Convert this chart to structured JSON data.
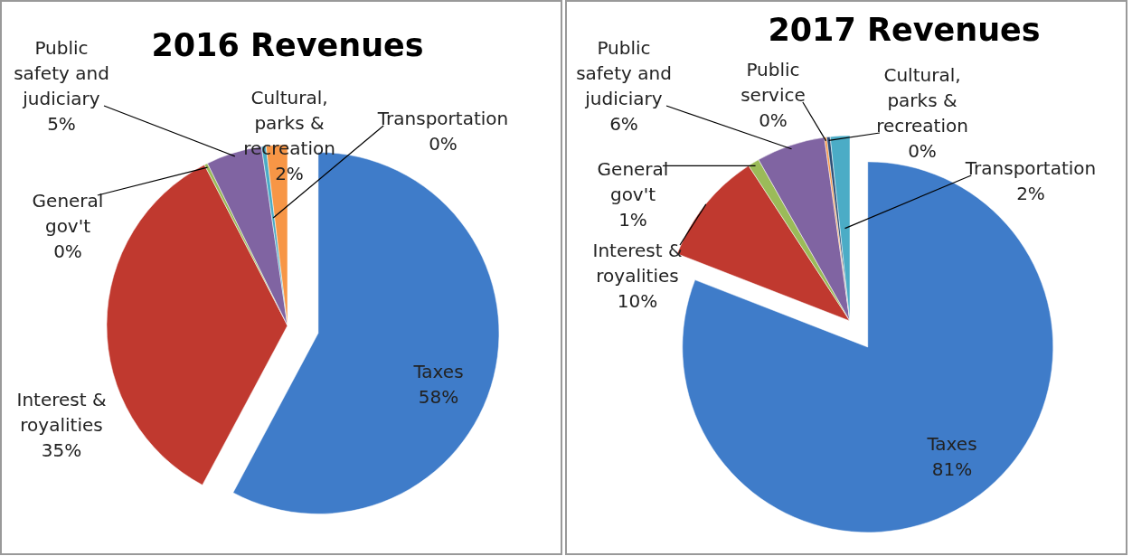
{
  "chart_data": [
    {
      "type": "pie",
      "title": "2016 Revenues",
      "categories": [
        "Taxes",
        "Interest & royalities",
        "General gov't",
        "Public safety and judiciary",
        "Transportation",
        "Cultural, parks & recreation"
      ],
      "values": [
        57.8,
        34.6,
        0.3,
        5.0,
        0.4,
        1.9
      ],
      "value_labels": [
        "58%",
        "35%",
        "0%",
        "5%",
        "0%",
        "2%"
      ],
      "colors": [
        "#3f7cc9",
        "#c0392f",
        "#9bbb59",
        "#8064a2",
        "#4bacc6",
        "#f79646"
      ]
    },
    {
      "type": "pie",
      "title": "2017 Revenues",
      "categories": [
        "Taxes",
        "Interest & royalities",
        "General gov't",
        "Public safety and judiciary",
        "Public service",
        "Cultural, parks & recreation",
        "Transportation"
      ],
      "values": [
        80.9,
        9.9,
        1.0,
        6.0,
        0.2,
        0.3,
        1.7
      ],
      "value_labels": [
        "81%",
        "10%",
        "1%",
        "6%",
        "0%",
        "0%",
        "2%"
      ],
      "colors": [
        "#3f7cc9",
        "#c0392f",
        "#9bbb59",
        "#8064a2",
        "#f79646",
        "#2c4d75",
        "#4bacc6"
      ]
    }
  ]
}
